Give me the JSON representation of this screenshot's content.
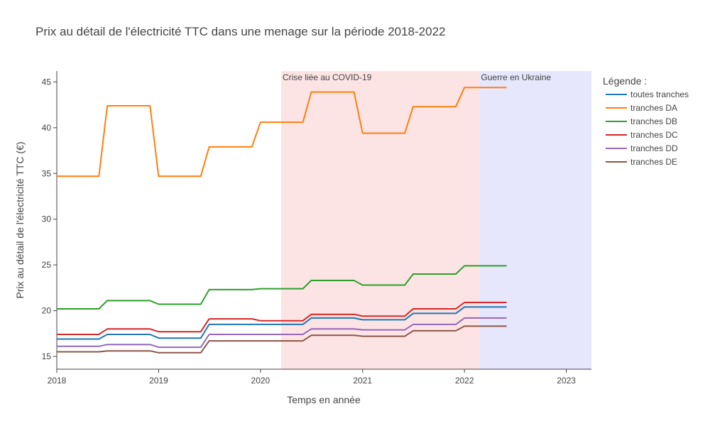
{
  "chart_data": {
    "type": "line",
    "title": "Prix au détail de l'électricité TTC dans une menage sur la période 2018-2022",
    "xlabel": "Temps en année",
    "ylabel": "Prix au détail de l'électricité TTC (€)",
    "xlim": [
      "2018-01-01",
      "2023-04-01"
    ],
    "ylim": [
      13.6,
      46.2
    ],
    "x_ticks": [
      "2018",
      "2019",
      "2020",
      "2021",
      "2022",
      "2023"
    ],
    "y_ticks": [
      15,
      20,
      25,
      30,
      35,
      40,
      45
    ],
    "grid": false,
    "legend": {
      "title": "Légende :",
      "placement": "right"
    },
    "x": [
      "2018-01-01",
      "2018-06-01",
      "2018-07-01",
      "2018-12-01",
      "2019-01-01",
      "2019-06-01",
      "2019-07-01",
      "2019-12-01",
      "2020-01-01",
      "2020-06-01",
      "2020-07-01",
      "2020-12-01",
      "2021-01-01",
      "2021-06-01",
      "2021-07-01",
      "2021-12-01",
      "2022-01-01",
      "2022-06-01"
    ],
    "series": [
      {
        "name": "toutes tranches",
        "color": "#1f77b4",
        "values": [
          16.9,
          16.9,
          17.4,
          17.4,
          17.0,
          17.0,
          18.5,
          18.5,
          18.5,
          18.5,
          19.2,
          19.2,
          19.0,
          19.0,
          19.7,
          19.7,
          20.4,
          20.4
        ]
      },
      {
        "name": "tranches DA",
        "color": "#ff7f0e",
        "values": [
          34.7,
          34.7,
          42.4,
          42.4,
          34.7,
          34.7,
          37.9,
          37.9,
          40.6,
          40.6,
          43.9,
          43.9,
          39.4,
          39.4,
          42.3,
          42.3,
          44.4,
          44.4
        ]
      },
      {
        "name": "tranches DB",
        "color": "#2ca02c",
        "values": [
          20.2,
          20.2,
          21.1,
          21.1,
          20.7,
          20.7,
          22.3,
          22.3,
          22.4,
          22.4,
          23.3,
          23.3,
          22.8,
          22.8,
          24.0,
          24.0,
          24.9,
          24.9
        ]
      },
      {
        "name": "tranches DC",
        "color": "#d62728",
        "values": [
          17.4,
          17.4,
          18.0,
          18.0,
          17.7,
          17.7,
          19.1,
          19.1,
          18.9,
          18.9,
          19.6,
          19.6,
          19.4,
          19.4,
          20.2,
          20.2,
          20.9,
          20.9
        ]
      },
      {
        "name": "tranches DD",
        "color": "#9467bd",
        "values": [
          16.1,
          16.1,
          16.3,
          16.3,
          16.0,
          16.0,
          17.4,
          17.4,
          17.4,
          17.4,
          18.0,
          18.0,
          17.9,
          17.9,
          18.5,
          18.5,
          19.2,
          19.2
        ]
      },
      {
        "name": "tranches DE",
        "color": "#8c564b",
        "values": [
          15.5,
          15.5,
          15.6,
          15.6,
          15.4,
          15.4,
          16.7,
          16.7,
          16.7,
          16.7,
          17.3,
          17.3,
          17.2,
          17.2,
          17.8,
          17.8,
          18.3,
          18.3
        ]
      }
    ],
    "shaded_regions": [
      {
        "label": "Crise liée au COVID-19",
        "x0": "2020-03-15",
        "x1": "2022-02-24",
        "color": "#fde4e4"
      },
      {
        "label": "Guerre en Ukraine",
        "x0": "2022-02-24",
        "x1": "2023-04-01",
        "color": "#e6e6fc"
      }
    ]
  }
}
